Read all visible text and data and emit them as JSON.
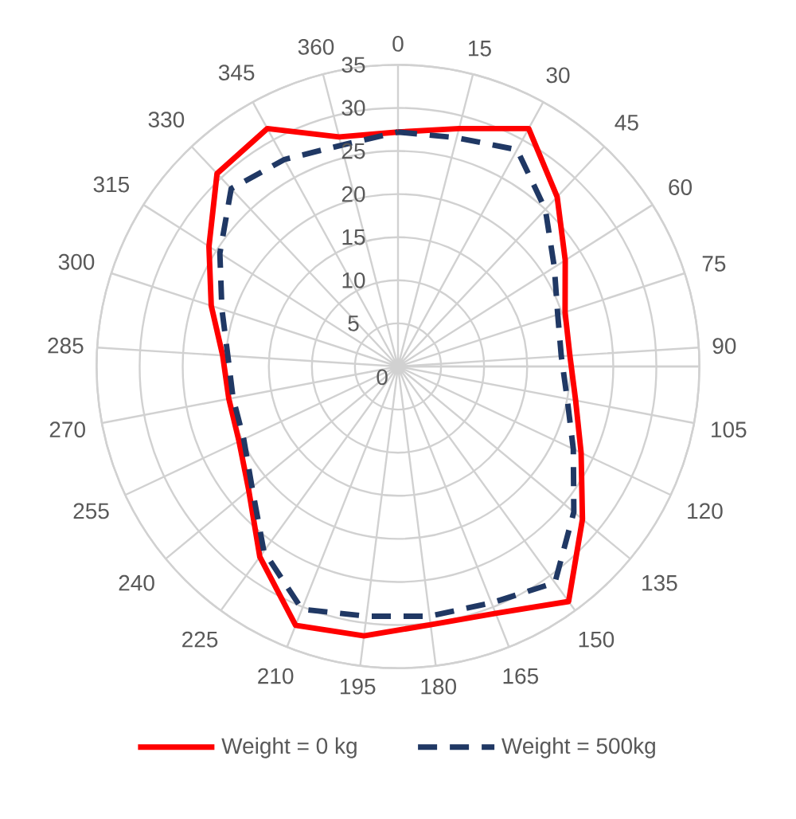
{
  "chart_data": {
    "type": "radar",
    "categories": [
      "0",
      "15",
      "30",
      "45",
      "60",
      "75",
      "90",
      "105",
      "120",
      "135",
      "150",
      "165",
      "180",
      "195",
      "210",
      "225",
      "240",
      "255",
      "270",
      "285",
      "300",
      "315",
      "330",
      "345",
      "360"
    ],
    "ylim": [
      0,
      35
    ],
    "yticks": [
      0,
      5,
      10,
      15,
      20,
      25,
      30,
      35
    ],
    "grid": true,
    "legend": "bottom",
    "marker": "none",
    "series": [
      {
        "name": "Weight = 0 kg",
        "color": "#ff0000",
        "line_style": "solid",
        "values": [
          27.2,
          28.5,
          31.5,
          27,
          23,
          20.4,
          20,
          21,
          23.5,
          27.8,
          33.7,
          30.8,
          30.2,
          31.5,
          32.3,
          27.3,
          22.5,
          20.4,
          20,
          20.4,
          22.8,
          26,
          30.7,
          31.5,
          27.5
        ]
      },
      {
        "name": "Weight = 500kg",
        "color": "#203864",
        "line_style": "dashed",
        "values": [
          27.2,
          27.4,
          28.7,
          25,
          21.5,
          19.5,
          19,
          20,
          22.5,
          26.5,
          31,
          29.5,
          29.2,
          29.2,
          30.3,
          26.5,
          22,
          19.8,
          19.5,
          19.8,
          21.5,
          24.5,
          28.3,
          27.4,
          26.5
        ]
      }
    ]
  }
}
